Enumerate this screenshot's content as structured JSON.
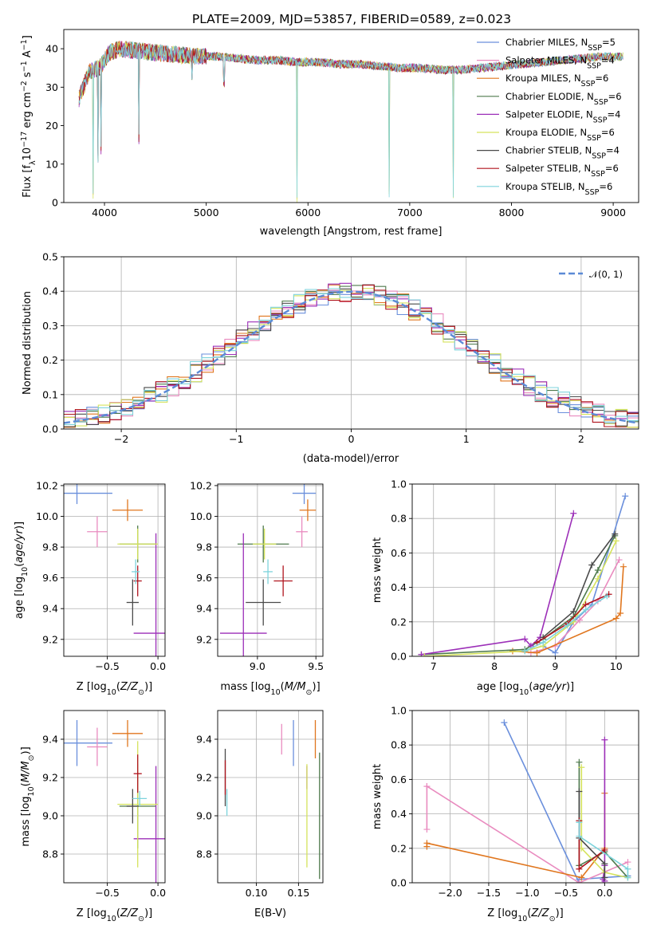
{
  "figure": {
    "title": "PLATE=2009, MJD=53857, FIBERID=0589, z=0.023"
  },
  "models": [
    {
      "name": "Chabrier MILES",
      "nssp": "5",
      "color": "#6a8fdc"
    },
    {
      "name": "Salpeter MILES",
      "nssp": "4",
      "color": "#e98bbf"
    },
    {
      "name": "Kroupa MILES",
      "nssp": "6",
      "color": "#e0761e"
    },
    {
      "name": "Chabrier ELODIE",
      "nssp": "6",
      "color": "#4e7a4c"
    },
    {
      "name": "Salpeter ELODIE",
      "nssp": "4",
      "color": "#9c2fb8"
    },
    {
      "name": "Kroupa ELODIE",
      "nssp": "6",
      "color": "#d5e35c"
    },
    {
      "name": "Chabrier STELIB",
      "nssp": "4",
      "color": "#4a4a4a"
    },
    {
      "name": "Salpeter STELIB",
      "nssp": "6",
      "color": "#b0141e"
    },
    {
      "name": "Kroupa STELIB",
      "nssp": "6",
      "color": "#7dd3dc"
    }
  ],
  "chart_data": [
    {
      "id": "spectrum",
      "type": "line",
      "xlabel": "wavelength [Angstrom, rest frame]",
      "ylabel": "Flux [fλ10⁻¹⁷ erg cm⁻² s⁻¹ A⁻¹]",
      "xlim": [
        3600,
        9250
      ],
      "ylim": [
        0,
        45
      ],
      "xticks": [
        "4000",
        "5000",
        "6000",
        "7000",
        "8000",
        "9000"
      ],
      "yticks": [
        "0",
        "10",
        "20",
        "30",
        "40"
      ],
      "legend": "top-right",
      "continuum": {
        "x": [
          3750,
          3850,
          3950,
          4050,
          4150,
          4300,
          4500,
          4700,
          4900,
          5100,
          5300,
          5500,
          5700,
          5900,
          6100,
          6300,
          6500,
          6700,
          6900,
          7100,
          7300,
          7500,
          7700,
          7900,
          8100,
          8300,
          8500,
          8700,
          8900,
          9100
        ],
        "y": [
          27,
          34,
          35,
          39,
          40,
          39.5,
          39,
          38.5,
          38,
          38,
          37.5,
          37,
          37,
          36.5,
          36.5,
          36,
          36,
          35.5,
          35,
          35,
          34.5,
          34.5,
          35,
          35.5,
          36,
          36.5,
          37,
          37.5,
          38,
          38
        ]
      },
      "dips": [
        {
          "x": 3890,
          "y": 0
        },
        {
          "x": 3935,
          "y": 10
        },
        {
          "x": 3968,
          "y": 12
        },
        {
          "x": 4340,
          "y": 15
        },
        {
          "x": 4861,
          "y": 31
        },
        {
          "x": 5175,
          "y": 30
        },
        {
          "x": 5890,
          "y": 0
        },
        {
          "x": 6800,
          "y": 0
        },
        {
          "x": 7430,
          "y": 0
        }
      ]
    },
    {
      "id": "residuals",
      "type": "line",
      "xlabel": "(data-model)/error",
      "ylabel": "Normed distribution",
      "xlim": [
        -2.5,
        2.5
      ],
      "ylim": [
        0,
        0.5
      ],
      "xticks": [
        "−2",
        "−1",
        "0",
        "1",
        "2"
      ],
      "yticks": [
        "0.0",
        "0.1",
        "0.2",
        "0.3",
        "0.4",
        "0.5"
      ],
      "legend_label": "𝒩(0, 1)",
      "bin_width": 0.1,
      "normal": {
        "mu": 0,
        "sigma": 1
      }
    },
    {
      "id": "age-vs-Z",
      "type": "scatter",
      "xlabel": "Z [log10(Z/Z⊙)]",
      "ylabel": "age  [log10(age/yr)]",
      "xlim": [
        -0.93,
        0.07
      ],
      "ylim": [
        9.09,
        10.21
      ],
      "xticks": [
        "−0.5",
        "0.0"
      ],
      "xtickvals": [
        -0.5,
        0
      ],
      "yticks": [
        "9.2",
        "9.4",
        "9.6",
        "9.8",
        "10.0",
        "10.2"
      ],
      "ytickvals": [
        9.2,
        9.4,
        9.6,
        9.8,
        10.0,
        10.2
      ],
      "points": [
        {
          "m": 0,
          "x": -0.8,
          "xe": 0.35,
          "y": 10.15,
          "ye": 0.07
        },
        {
          "m": 1,
          "x": -0.6,
          "xe": 0.1,
          "y": 9.9,
          "ye": 0.1
        },
        {
          "m": 2,
          "x": -0.3,
          "xe": 0.15,
          "y": 10.04,
          "ye": 0.07
        },
        {
          "m": 3,
          "x": -0.2,
          "xe": 0.18,
          "y": 9.82,
          "ye": 0.12
        },
        {
          "m": 4,
          "x": -0.02,
          "xe": 0.22,
          "y": 9.24,
          "ye": 0.65
        },
        {
          "m": 5,
          "x": -0.2,
          "xe": 0.2,
          "y": 9.82,
          "ye": 0.1
        },
        {
          "m": 6,
          "x": -0.25,
          "xe": 0.06,
          "y": 9.44,
          "ye": 0.15
        },
        {
          "m": 7,
          "x": -0.2,
          "xe": 0.04,
          "y": 9.58,
          "ye": 0.1
        },
        {
          "m": 8,
          "x": -0.22,
          "xe": 0.04,
          "y": 9.64,
          "ye": 0.08
        }
      ]
    },
    {
      "id": "age-vs-mass",
      "type": "scatter",
      "xlabel": "mass [log10(M/M⊙)]",
      "ylabel": "",
      "xlim": [
        8.66,
        9.56
      ],
      "ylim": [
        9.09,
        10.21
      ],
      "xticks": [
        "9.0",
        "9.5"
      ],
      "xtickvals": [
        9.0,
        9.5
      ],
      "yticks": [
        "9.2",
        "9.4",
        "9.6",
        "9.8",
        "10.0",
        "10.2"
      ],
      "ytickvals": [
        9.2,
        9.4,
        9.6,
        9.8,
        10.0,
        10.2
      ],
      "points": [
        {
          "m": 0,
          "x": 9.4,
          "xe": 0.1,
          "y": 10.15,
          "ye": 0.07
        },
        {
          "m": 1,
          "x": 9.38,
          "xe": 0.05,
          "y": 9.9,
          "ye": 0.1
        },
        {
          "m": 2,
          "x": 9.43,
          "xe": 0.07,
          "y": 10.04,
          "ye": 0.07
        },
        {
          "m": 3,
          "x": 9.05,
          "xe": 0.22,
          "y": 9.82,
          "ye": 0.12
        },
        {
          "m": 4,
          "x": 8.88,
          "xe": 0.2,
          "y": 9.24,
          "ye": 0.65
        },
        {
          "m": 5,
          "x": 9.06,
          "xe": 0.1,
          "y": 9.82,
          "ye": 0.1
        },
        {
          "m": 6,
          "x": 9.05,
          "xe": 0.15,
          "y": 9.44,
          "ye": 0.15
        },
        {
          "m": 7,
          "x": 9.22,
          "xe": 0.08,
          "y": 9.58,
          "ye": 0.1
        },
        {
          "m": 8,
          "x": 9.09,
          "xe": 0.04,
          "y": 9.64,
          "ye": 0.08
        }
      ]
    },
    {
      "id": "mass-weight-vs-age",
      "type": "line",
      "xlabel": "age  [log10(age/yr)]",
      "ylabel": "mass weight",
      "xlim": [
        6.65,
        10.37
      ],
      "ylim": [
        0,
        1
      ],
      "xticks": [
        "7",
        "8",
        "9",
        "10"
      ],
      "xtickvals": [
        7,
        8,
        9,
        10
      ],
      "yticks": [
        "0.0",
        "0.2",
        "0.4",
        "0.6",
        "0.8",
        "1.0"
      ],
      "ytickvals": [
        0,
        0.2,
        0.4,
        0.6,
        0.8,
        1.0
      ],
      "series": [
        {
          "m": 0,
          "x": [
            8.5,
            8.8,
            9.0,
            9.3,
            9.6,
            10.15
          ],
          "y": [
            0.03,
            0.06,
            0.02,
            0.2,
            0.3,
            0.93
          ]
        },
        {
          "m": 1,
          "x": [
            8.6,
            9.0,
            9.4,
            9.7,
            10.05
          ],
          "y": [
            0.02,
            0.06,
            0.21,
            0.32,
            0.56
          ]
        },
        {
          "m": 2,
          "x": [
            8.3,
            8.7,
            10.0,
            10.07,
            10.12
          ],
          "y": [
            0.03,
            0.02,
            0.22,
            0.25,
            0.52
          ]
        },
        {
          "m": 3,
          "x": [
            6.8,
            8.5,
            8.8,
            9.3,
            9.7,
            9.98
          ],
          "y": [
            0.01,
            0.04,
            0.1,
            0.23,
            0.5,
            0.7
          ]
        },
        {
          "m": 4,
          "x": [
            6.8,
            8.5,
            8.6,
            8.75,
            9.3
          ],
          "y": [
            0.01,
            0.1,
            0.06,
            0.11,
            0.83
          ]
        },
        {
          "m": 5,
          "x": [
            6.85,
            8.5,
            8.8,
            9.3,
            9.7,
            10.0
          ],
          "y": [
            0.0,
            0.03,
            0.06,
            0.2,
            0.45,
            0.67
          ]
        },
        {
          "m": 6,
          "x": [
            8.8,
            9.3,
            9.6,
            9.98
          ],
          "y": [
            0.11,
            0.26,
            0.53,
            0.71
          ]
        },
        {
          "m": 7,
          "x": [
            8.7,
            9.2,
            9.5,
            9.88
          ],
          "y": [
            0.08,
            0.19,
            0.3,
            0.36
          ]
        },
        {
          "m": 8,
          "x": [
            8.5,
            8.8,
            9.2,
            9.5,
            9.85
          ],
          "y": [
            0.03,
            0.08,
            0.18,
            0.27,
            0.35
          ]
        }
      ]
    },
    {
      "id": "mass-vs-Z",
      "type": "scatter",
      "xlabel": "Z [log10(Z/Z⊙)]",
      "ylabel": "mass [log10(M/M⊙)]",
      "xlim": [
        -0.93,
        0.07
      ],
      "ylim": [
        8.65,
        9.55
      ],
      "xticks": [
        "−0.5",
        "0.0"
      ],
      "xtickvals": [
        -0.5,
        0
      ],
      "yticks": [
        "8.8",
        "9.0",
        "9.2",
        "9.4"
      ],
      "ytickvals": [
        8.8,
        9.0,
        9.2,
        9.4
      ],
      "points": [
        {
          "m": 0,
          "x": -0.8,
          "xe": 0.35,
          "y": 9.38,
          "ye": 0.12
        },
        {
          "m": 1,
          "x": -0.6,
          "xe": 0.1,
          "y": 9.36,
          "ye": 0.1
        },
        {
          "m": 2,
          "x": -0.3,
          "xe": 0.15,
          "y": 9.43,
          "ye": 0.07
        },
        {
          "m": 3,
          "x": -0.2,
          "xe": 0.18,
          "y": 9.05,
          "ye": 0.22
        },
        {
          "m": 4,
          "x": -0.02,
          "xe": 0.22,
          "y": 8.88,
          "ye": 0.38
        },
        {
          "m": 5,
          "x": -0.2,
          "xe": 0.2,
          "y": 9.06,
          "ye": 0.33
        },
        {
          "m": 6,
          "x": -0.25,
          "xe": 0.06,
          "y": 9.05,
          "ye": 0.09
        },
        {
          "m": 7,
          "x": -0.2,
          "xe": 0.04,
          "y": 9.22,
          "ye": 0.1
        },
        {
          "m": 8,
          "x": -0.18,
          "xe": 0.07,
          "y": 9.09,
          "ye": 0.04
        }
      ]
    },
    {
      "id": "mass-vs-EBV",
      "type": "scatter",
      "xlabel": "E(B-V)",
      "ylabel": "",
      "xlim": [
        0.054,
        0.179
      ],
      "ylim": [
        8.65,
        9.55
      ],
      "xticks": [
        "0.10",
        "0.15"
      ],
      "xtickvals": [
        0.1,
        0.15
      ],
      "yticks": [
        "8.8",
        "9.0",
        "9.2",
        "9.4"
      ],
      "ytickvals": [
        8.8,
        9.0,
        9.2,
        9.4
      ],
      "points": [
        {
          "m": 0,
          "x": 0.144,
          "xe": 0,
          "y": 9.38,
          "ye": 0.12
        },
        {
          "m": 1,
          "x": 0.13,
          "xe": 0,
          "y": 9.4,
          "ye": 0.08
        },
        {
          "m": 2,
          "x": 0.17,
          "xe": 0,
          "y": 9.4,
          "ye": 0.1
        },
        {
          "m": 3,
          "x": 0.175,
          "xe": 0,
          "y": 9.0,
          "ye": 0.33
        },
        {
          "m": 4,
          "x": 0.16,
          "xe": 0,
          "y": 9.2,
          "ye": 0.06
        },
        {
          "m": 5,
          "x": 0.16,
          "xe": 0,
          "y": 9.0,
          "ye": 0.27
        },
        {
          "m": 6,
          "x": 0.063,
          "xe": 0,
          "y": 9.2,
          "ye": 0.15
        },
        {
          "m": 7,
          "x": 0.063,
          "xe": 0,
          "y": 9.2,
          "ye": 0.09
        },
        {
          "m": 8,
          "x": 0.065,
          "xe": 0,
          "y": 9.07,
          "ye": 0.07
        }
      ]
    },
    {
      "id": "mass-weight-vs-Z",
      "type": "line",
      "xlabel": "Z [log10(Z/Z⊙)]",
      "ylabel": "mass weight",
      "xlim": [
        -2.49,
        0.44
      ],
      "ylim": [
        0,
        1
      ],
      "xticks": [
        "−2.0",
        "−1.5",
        "−1.0",
        "−0.5",
        "0.0"
      ],
      "xtickvals": [
        -2,
        -1.5,
        -1,
        -0.5,
        0
      ],
      "yticks": [
        "0.0",
        "0.2",
        "0.4",
        "0.6",
        "0.8",
        "1.0"
      ],
      "ytickvals": [
        0,
        0.2,
        0.4,
        0.6,
        0.8,
        1.0
      ],
      "series": [
        {
          "m": 0,
          "x": [
            -1.3,
            -0.33,
            -0.33,
            0.3
          ],
          "y": [
            0.93,
            0.0,
            0.02,
            0.04
          ]
        },
        {
          "m": 1,
          "x": [
            -2.3,
            -2.3,
            -2.3,
            -0.33,
            0.3
          ],
          "y": [
            0.31,
            0.56,
            0.56,
            0.0,
            0.12
          ]
        },
        {
          "m": 2,
          "x": [
            -2.3,
            -2.3,
            -0.3,
            0.0,
            0.0
          ],
          "y": [
            0.21,
            0.23,
            0.03,
            0.2,
            0.52
          ]
        },
        {
          "m": 3,
          "x": [
            -0.33,
            -0.33,
            0.0,
            0.3
          ],
          "y": [
            0.7,
            0.1,
            0.18,
            0.03
          ]
        },
        {
          "m": 4,
          "x": [
            0.0,
            0.0,
            -0.02,
            0.0
          ],
          "y": [
            0.83,
            0.1,
            0.02,
            0.01
          ]
        },
        {
          "m": 5,
          "x": [
            -0.3,
            -0.3,
            0.0,
            0.3
          ],
          "y": [
            0.67,
            0.2,
            0.06,
            0.03
          ]
        },
        {
          "m": 6,
          "x": [
            -0.33,
            -0.33,
            0.0,
            0.0
          ],
          "y": [
            0.53,
            0.26,
            0.11,
            0.03
          ]
        },
        {
          "m": 7,
          "x": [
            -0.33,
            -0.33,
            0.0
          ],
          "y": [
            0.36,
            0.08,
            0.19
          ]
        },
        {
          "m": 8,
          "x": [
            -0.33,
            -0.33,
            0.3,
            0.3
          ],
          "y": [
            0.35,
            0.27,
            0.08,
            0.03
          ]
        }
      ]
    }
  ]
}
